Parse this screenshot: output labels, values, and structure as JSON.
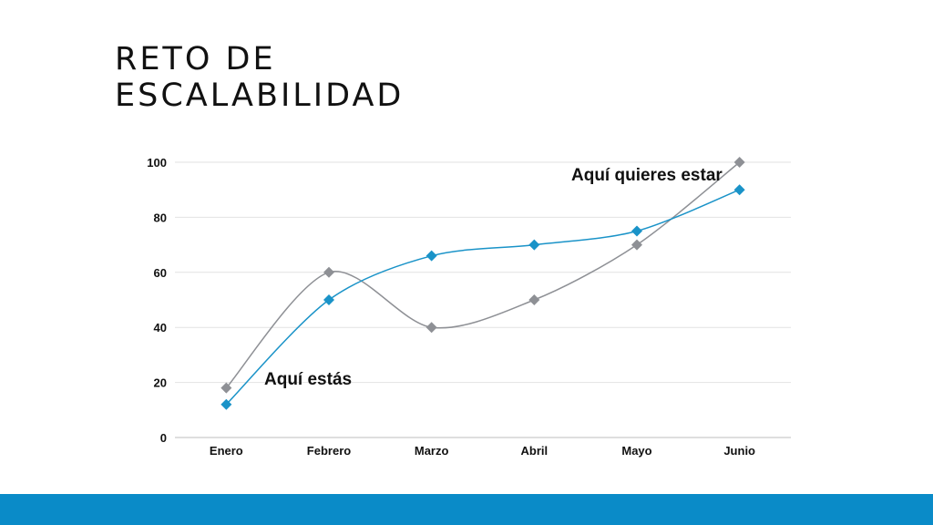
{
  "title": {
    "line1": "RETO DE",
    "line2": "ESCALABILIDAD"
  },
  "colors": {
    "accent": "#0a8bc8",
    "series_actual": "#1a93c8",
    "series_target": "#8e9095",
    "grid": "#e2e2e2",
    "axis": "#bdbdbd"
  },
  "chart_data": {
    "type": "line",
    "title": "",
    "xlabel": "",
    "ylabel": "",
    "categories": [
      "Enero",
      "Febrero",
      "Marzo",
      "Abril",
      "Mayo",
      "Junio"
    ],
    "yticks": [
      "0",
      "20",
      "40",
      "60",
      "80",
      "100"
    ],
    "ylim": [
      0,
      100
    ],
    "grid": true,
    "smooth": true,
    "marker": "diamond",
    "series": [
      {
        "name": "Aquí quieres estar",
        "color": "#8e9095",
        "values": [
          18,
          60,
          40,
          50,
          70,
          100
        ]
      },
      {
        "name": "Aquí estás",
        "color": "#1a93c8",
        "values": [
          12,
          50,
          66,
          70,
          75,
          90
        ]
      }
    ],
    "annotations": [
      {
        "text": "Aquí estás",
        "near": "Enero"
      },
      {
        "text": "Aquí quieres estar",
        "near": "Junio"
      }
    ]
  }
}
